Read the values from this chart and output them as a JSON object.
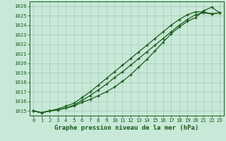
{
  "title": "Graphe pression niveau de la mer (hPa)",
  "bg_color": "#c8e8d8",
  "grid_color": "#a8c8b8",
  "line_color": "#1a5c1a",
  "x_values": [
    0,
    1,
    2,
    3,
    4,
    5,
    6,
    7,
    8,
    9,
    10,
    11,
    12,
    13,
    14,
    15,
    16,
    17,
    18,
    19,
    20,
    21,
    22,
    23
  ],
  "series1": [
    1015.0,
    1014.8,
    1015.0,
    1015.1,
    1015.3,
    1015.6,
    1016.1,
    1016.6,
    1017.2,
    1017.8,
    1018.5,
    1019.1,
    1019.8,
    1020.5,
    1021.2,
    1021.9,
    1022.6,
    1023.3,
    1024.0,
    1024.6,
    1025.1,
    1025.3,
    1025.2,
    1025.3
  ],
  "series2": [
    1015.0,
    1014.8,
    1015.0,
    1015.2,
    1015.5,
    1015.8,
    1016.4,
    1017.0,
    1017.7,
    1018.4,
    1019.1,
    1019.8,
    1020.5,
    1021.2,
    1021.9,
    1022.6,
    1023.3,
    1024.0,
    1024.6,
    1025.1,
    1025.4,
    1025.4,
    1025.2,
    1025.3
  ],
  "series3": [
    1015.0,
    1014.8,
    1015.0,
    1015.1,
    1015.3,
    1015.5,
    1015.9,
    1016.2,
    1016.6,
    1017.0,
    1017.5,
    1018.1,
    1018.8,
    1019.6,
    1020.4,
    1021.3,
    1022.2,
    1023.1,
    1023.8,
    1024.4,
    1024.8,
    1025.5,
    1025.9,
    1025.3
  ],
  "ylim": [
    1014.5,
    1026.5
  ],
  "yticks": [
    1015,
    1016,
    1017,
    1018,
    1019,
    1020,
    1021,
    1022,
    1023,
    1024,
    1025,
    1026
  ],
  "xlim": [
    -0.5,
    23.5
  ],
  "xticks": [
    0,
    1,
    2,
    3,
    4,
    5,
    6,
    7,
    8,
    9,
    10,
    11,
    12,
    13,
    14,
    15,
    16,
    17,
    18,
    19,
    20,
    21,
    22,
    23
  ],
  "marker": "+",
  "marker_size": 3.5,
  "line_width": 0.9,
  "title_fontsize": 6.5,
  "tick_fontsize": 5.2,
  "figsize": [
    3.2,
    2.0
  ],
  "dpi": 100
}
